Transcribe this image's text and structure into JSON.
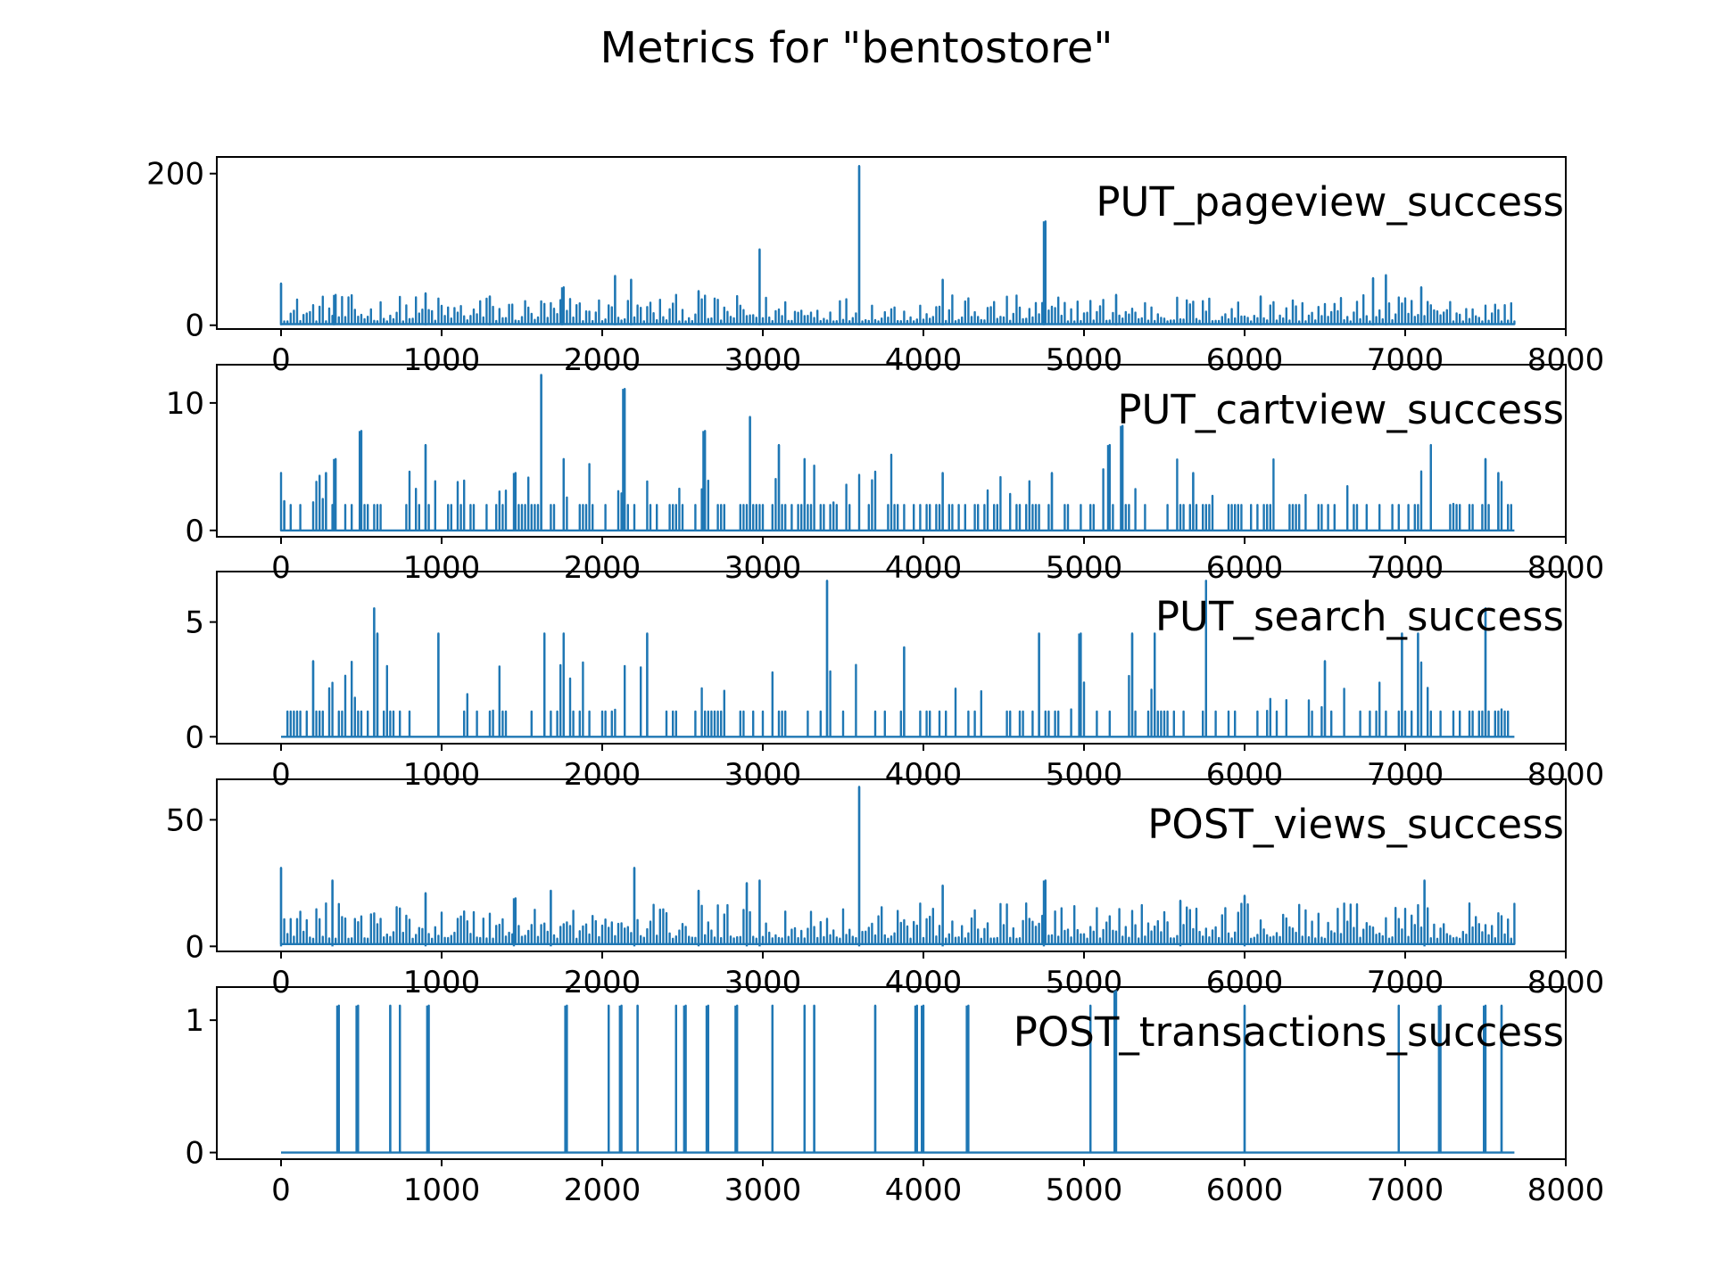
{
  "chart_data": {
    "type": "line",
    "title": "Metrics for \"bentostore\"",
    "xlim": [
      -400,
      8000
    ],
    "x_ticks": [
      "0",
      "1000",
      "2000",
      "3000",
      "4000",
      "5000",
      "6000",
      "7000",
      "8000"
    ],
    "x_tick_values": [
      0,
      1000,
      2000,
      3000,
      4000,
      5000,
      6000,
      7000,
      8000
    ],
    "x_range": [
      0,
      7680
    ],
    "line_color": "#1f77b4",
    "panels": [
      {
        "name": "PUT_pageview_success",
        "ylim": [
          -5,
          222
        ],
        "y_ticks": [
          "0",
          "200"
        ],
        "y_tick_values": [
          0,
          200
        ],
        "baseline": 5,
        "typical_peak": 25,
        "spikes": [
          {
            "x": 0,
            "y": 55
          },
          {
            "x": 330,
            "y": 40
          },
          {
            "x": 900,
            "y": 42
          },
          {
            "x": 1300,
            "y": 38
          },
          {
            "x": 1750,
            "y": 50
          },
          {
            "x": 2080,
            "y": 65
          },
          {
            "x": 2180,
            "y": 60
          },
          {
            "x": 2600,
            "y": 45
          },
          {
            "x": 2980,
            "y": 100
          },
          {
            "x": 3600,
            "y": 210
          },
          {
            "x": 4120,
            "y": 60
          },
          {
            "x": 4750,
            "y": 137
          },
          {
            "x": 5200,
            "y": 40
          },
          {
            "x": 6100,
            "y": 38
          },
          {
            "x": 6800,
            "y": 62
          },
          {
            "x": 6880,
            "y": 66
          },
          {
            "x": 7100,
            "y": 50
          }
        ]
      },
      {
        "name": "PUT_cartview_success",
        "ylim": [
          -0.5,
          13
        ],
        "y_ticks": [
          "0",
          "10"
        ],
        "y_tick_values": [
          0,
          10
        ],
        "baseline": 0,
        "typical_peak": 2,
        "spikes": [
          {
            "x": 20,
            "y": 2.3
          },
          {
            "x": 280,
            "y": 4.5
          },
          {
            "x": 330,
            "y": 5.6
          },
          {
            "x": 490,
            "y": 7.8
          },
          {
            "x": 900,
            "y": 6.7
          },
          {
            "x": 1450,
            "y": 4.5
          },
          {
            "x": 1620,
            "y": 12.2
          },
          {
            "x": 1760,
            "y": 5.6
          },
          {
            "x": 2130,
            "y": 11.1
          },
          {
            "x": 2630,
            "y": 7.8
          },
          {
            "x": 2920,
            "y": 8.9
          },
          {
            "x": 3100,
            "y": 6.7
          },
          {
            "x": 3260,
            "y": 5.6
          },
          {
            "x": 4120,
            "y": 4.5
          },
          {
            "x": 4800,
            "y": 4.5
          },
          {
            "x": 5150,
            "y": 6.7
          },
          {
            "x": 5230,
            "y": 8.2
          },
          {
            "x": 5680,
            "y": 4.5
          },
          {
            "x": 7160,
            "y": 6.7
          },
          {
            "x": 7500,
            "y": 5.6
          },
          {
            "x": 7580,
            "y": 4.5
          }
        ]
      },
      {
        "name": "PUT_search_success",
        "ylim": [
          -0.3,
          7.2
        ],
        "y_ticks": [
          "0",
          "5"
        ],
        "y_tick_values": [
          0,
          5
        ],
        "baseline": 0,
        "typical_peak": 1.1,
        "spikes": [
          {
            "x": 200,
            "y": 3.3
          },
          {
            "x": 580,
            "y": 5.6
          },
          {
            "x": 600,
            "y": 4.5
          },
          {
            "x": 980,
            "y": 4.5
          },
          {
            "x": 1640,
            "y": 4.5
          },
          {
            "x": 1760,
            "y": 4.5
          },
          {
            "x": 2280,
            "y": 4.5
          },
          {
            "x": 3400,
            "y": 6.8
          },
          {
            "x": 3880,
            "y": 3.9
          },
          {
            "x": 4720,
            "y": 4.5
          },
          {
            "x": 4970,
            "y": 4.5
          },
          {
            "x": 5300,
            "y": 4.5
          },
          {
            "x": 5440,
            "y": 4.5
          },
          {
            "x": 5760,
            "y": 6.8
          },
          {
            "x": 6500,
            "y": 3.3
          },
          {
            "x": 6980,
            "y": 4.5
          },
          {
            "x": 7080,
            "y": 4.5
          },
          {
            "x": 7500,
            "y": 5.6
          }
        ]
      },
      {
        "name": "POST_views_success",
        "ylim": [
          -2,
          66
        ],
        "y_ticks": [
          "0",
          "50"
        ],
        "y_tick_values": [
          0,
          50
        ],
        "baseline": 3,
        "typical_peak": 10,
        "spikes": [
          {
            "x": 0,
            "y": 31
          },
          {
            "x": 320,
            "y": 26
          },
          {
            "x": 900,
            "y": 21
          },
          {
            "x": 1450,
            "y": 19
          },
          {
            "x": 1680,
            "y": 22
          },
          {
            "x": 2200,
            "y": 31
          },
          {
            "x": 2600,
            "y": 22
          },
          {
            "x": 2900,
            "y": 25
          },
          {
            "x": 2980,
            "y": 26
          },
          {
            "x": 3600,
            "y": 63
          },
          {
            "x": 4120,
            "y": 24
          },
          {
            "x": 4750,
            "y": 26
          },
          {
            "x": 5600,
            "y": 18
          },
          {
            "x": 6000,
            "y": 20
          },
          {
            "x": 7120,
            "y": 26
          }
        ]
      },
      {
        "name": "POST_transactions_success",
        "ylim": [
          -0.05,
          1.25
        ],
        "y_ticks": [
          "0",
          "1"
        ],
        "y_tick_values": [
          0,
          1
        ],
        "baseline": 0,
        "typical_peak": 0,
        "spikes": [
          {
            "x": 350,
            "y": 1.11
          },
          {
            "x": 470,
            "y": 1.11
          },
          {
            "x": 680,
            "y": 1.11
          },
          {
            "x": 740,
            "y": 1.11
          },
          {
            "x": 910,
            "y": 1.11
          },
          {
            "x": 1770,
            "y": 1.11
          },
          {
            "x": 2040,
            "y": 1.11
          },
          {
            "x": 2110,
            "y": 1.11
          },
          {
            "x": 2220,
            "y": 1.11
          },
          {
            "x": 2460,
            "y": 1.11
          },
          {
            "x": 2510,
            "y": 1.11
          },
          {
            "x": 2650,
            "y": 1.11
          },
          {
            "x": 2830,
            "y": 1.11
          },
          {
            "x": 3060,
            "y": 1.11
          },
          {
            "x": 3260,
            "y": 1.11
          },
          {
            "x": 3320,
            "y": 1.11
          },
          {
            "x": 3700,
            "y": 1.11
          },
          {
            "x": 3950,
            "y": 1.11
          },
          {
            "x": 3990,
            "y": 1.11
          },
          {
            "x": 4270,
            "y": 1.11
          },
          {
            "x": 5040,
            "y": 1.11
          },
          {
            "x": 5190,
            "y": 1.22
          },
          {
            "x": 6000,
            "y": 1.11
          },
          {
            "x": 6960,
            "y": 1.11
          },
          {
            "x": 7210,
            "y": 1.11
          },
          {
            "x": 7490,
            "y": 1.11
          },
          {
            "x": 7600,
            "y": 1.11
          }
        ]
      }
    ]
  }
}
